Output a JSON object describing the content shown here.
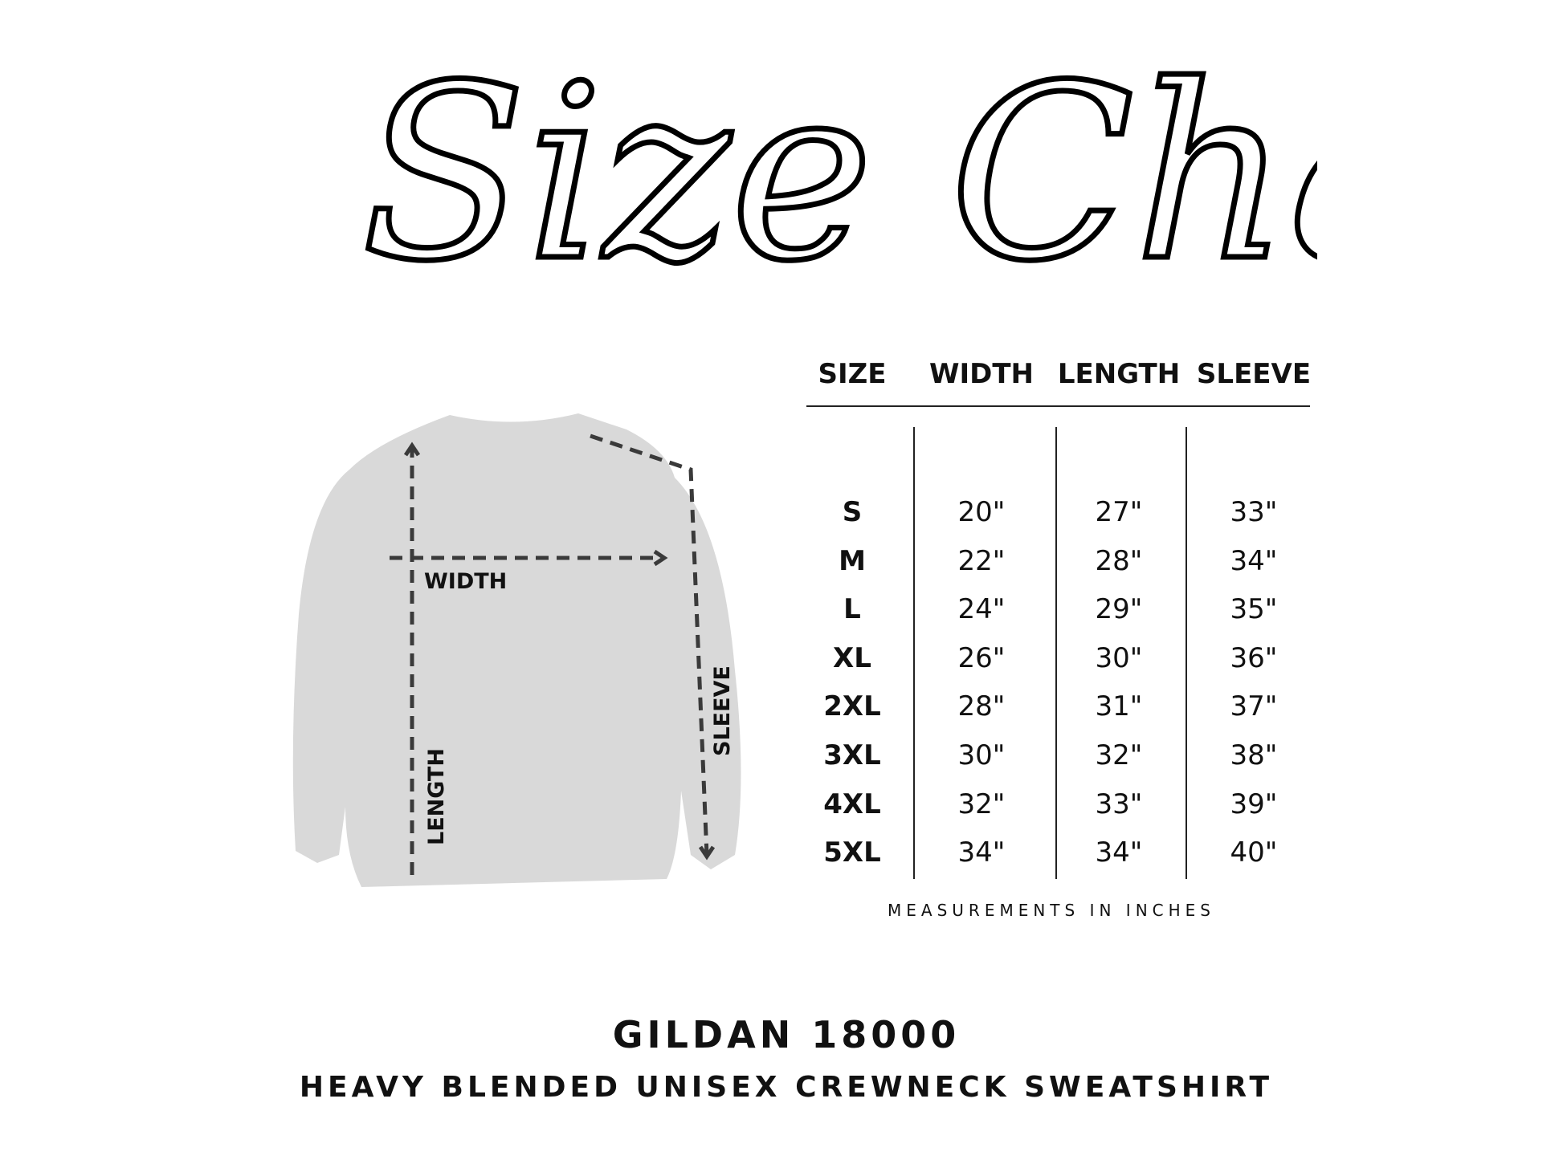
{
  "title": "Size Chart",
  "table": {
    "headers": [
      "SIZE",
      "WIDTH",
      "LENGTH",
      "SLEEVE"
    ],
    "rows": [
      [
        "S",
        "20\"",
        "27\"",
        "33\""
      ],
      [
        "M",
        "22\"",
        "28\"",
        "34\""
      ],
      [
        "L",
        "24\"",
        "29\"",
        "35\""
      ],
      [
        "XL",
        "26\"",
        "30\"",
        "36\""
      ],
      [
        "2XL",
        "28\"",
        "31\"",
        "37\""
      ],
      [
        "3XL",
        "30\"",
        "32\"",
        "38\""
      ],
      [
        "4XL",
        "32\"",
        "33\"",
        "39\""
      ],
      [
        "5XL",
        "34\"",
        "34\"",
        "40\""
      ]
    ],
    "note": "MEASUREMENTS IN INCHES"
  },
  "diagram": {
    "width_label": "WIDTH",
    "length_label": "LENGTH",
    "sleeve_label": "SLEEVE",
    "garment_color": "#d9d9d9",
    "arrow_color": "#3a3a3a"
  },
  "product": {
    "brand_model": "GILDAN 18000",
    "description": "HEAVY BLENDED UNISEX CREWNECK SWEATSHIRT"
  }
}
